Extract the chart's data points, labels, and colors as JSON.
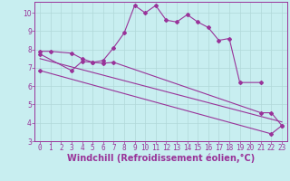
{
  "xlabel": "Windchill (Refroidissement éolien,°C)",
  "xlim": [
    -0.5,
    23.5
  ],
  "ylim": [
    3,
    10.6
  ],
  "xticks": [
    0,
    1,
    2,
    3,
    4,
    5,
    6,
    7,
    8,
    9,
    10,
    11,
    12,
    13,
    14,
    15,
    16,
    17,
    18,
    19,
    20,
    21,
    22,
    23
  ],
  "yticks": [
    3,
    4,
    5,
    6,
    7,
    8,
    9,
    10
  ],
  "bg_color": "#c8eef0",
  "grid_color": "#b0d8d8",
  "line_color": "#993399",
  "curve1_x": [
    0,
    1,
    3,
    4,
    5,
    6,
    7,
    8,
    9,
    10,
    11,
    12,
    13,
    14,
    15,
    16,
    17,
    18,
    19,
    21
  ],
  "curve1_y": [
    7.9,
    7.9,
    7.8,
    7.5,
    7.3,
    7.4,
    8.1,
    8.9,
    10.4,
    10.0,
    10.4,
    9.6,
    9.5,
    9.9,
    9.5,
    9.2,
    8.5,
    8.6,
    6.2,
    6.2
  ],
  "curve2_x": [
    0,
    3,
    4,
    5,
    6,
    7,
    21,
    22,
    23
  ],
  "curve2_y": [
    7.75,
    6.85,
    7.35,
    7.3,
    7.25,
    7.3,
    4.55,
    4.55,
    3.85
  ],
  "curve3_x": [
    0,
    23
  ],
  "curve3_y": [
    7.5,
    4.05
  ],
  "curve4_x": [
    0,
    22,
    23
  ],
  "curve4_y": [
    6.85,
    3.4,
    3.85
  ],
  "font_color": "#993399",
  "tick_fontsize": 5.5,
  "xlabel_fontsize": 7.0,
  "markersize": 2.0,
  "linewidth": 0.8
}
